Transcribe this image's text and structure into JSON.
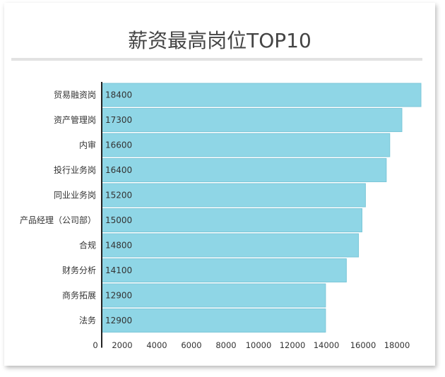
{
  "chart_data": {
    "type": "bar",
    "orientation": "horizontal",
    "title": "薪资最高岗位TOP10",
    "categories": [
      "贸易融资岗",
      "资产管理岗",
      "内审",
      "投行业务岗",
      "同业业务岗",
      "产品经理（公司部）",
      "合规",
      "财务分析",
      "商务拓展",
      "法务"
    ],
    "values": [
      18400,
      17300,
      16600,
      16400,
      15200,
      15000,
      14800,
      14100,
      12900,
      12900
    ],
    "xticks": [
      "0",
      "2000",
      "4000",
      "6000",
      "8000",
      "10000",
      "12000",
      "14000",
      "16000",
      "18000"
    ],
    "xlim": [
      0,
      19000
    ],
    "grid": false,
    "bar_color": "#8fd6e6",
    "bar_border_color": "#7cc7d8"
  }
}
